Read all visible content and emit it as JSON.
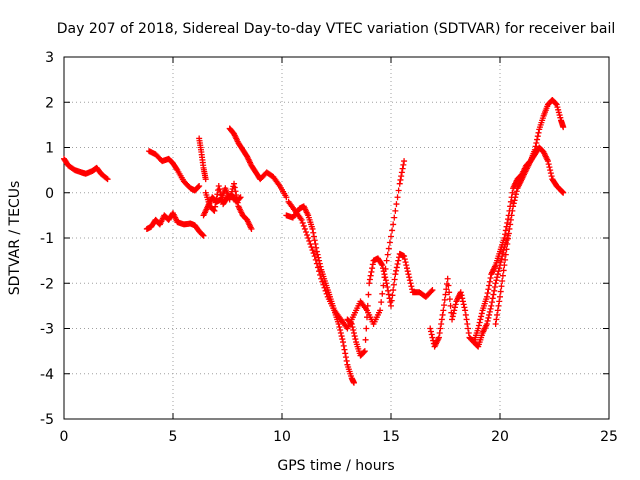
{
  "chart_data": {
    "type": "scatter",
    "title": "Day 207 of 2018, Sidereal Day-to-day VTEC variation (SDTVAR) for receiver bail",
    "xlabel": "GPS time / hours",
    "ylabel": "SDTVAR / TECUs",
    "xlim": [
      0,
      25
    ],
    "ylim": [
      -5,
      3
    ],
    "xticks": [
      "0",
      "5",
      "10",
      "15",
      "20",
      "25"
    ],
    "yticks": [
      "-5",
      "-4",
      "-3",
      "-2",
      "-1",
      "0",
      "1",
      "2",
      "3"
    ],
    "grid": true,
    "marker": "plus",
    "color": "#ff0000",
    "series": [
      {
        "x": [
          0.0,
          0.2,
          0.5,
          0.8,
          1.0,
          1.3,
          1.5,
          1.7,
          2.0
        ],
        "y": [
          0.75,
          0.6,
          0.5,
          0.45,
          0.42,
          0.48,
          0.55,
          0.42,
          0.3
        ]
      },
      {
        "x": [
          3.9,
          4.2,
          4.5,
          4.8,
          5.0,
          5.2,
          5.5,
          5.8,
          6.0,
          6.2
        ],
        "y": [
          0.92,
          0.85,
          0.7,
          0.75,
          0.65,
          0.5,
          0.25,
          0.1,
          0.05,
          0.15
        ]
      },
      {
        "x": [
          6.2,
          6.3,
          6.4,
          6.5
        ],
        "y": [
          1.2,
          0.9,
          0.55,
          0.3
        ]
      },
      {
        "x": [
          3.8,
          4.0,
          4.2,
          4.4,
          4.6,
          4.8,
          5.0,
          5.2,
          5.5,
          5.8,
          6.0,
          6.2,
          6.4
        ],
        "y": [
          -0.8,
          -0.75,
          -0.6,
          -0.7,
          -0.5,
          -0.6,
          -0.45,
          -0.65,
          -0.7,
          -0.68,
          -0.72,
          -0.85,
          -0.95
        ]
      },
      {
        "x": [
          6.4,
          6.6,
          6.8,
          7.0,
          7.2,
          7.4,
          7.6,
          7.8,
          8.0,
          8.2,
          8.4,
          8.6
        ],
        "y": [
          -0.5,
          -0.3,
          -0.1,
          -0.2,
          -0.15,
          0.1,
          -0.15,
          0.2,
          -0.3,
          -0.5,
          -0.6,
          -0.8
        ]
      },
      {
        "x": [
          6.5,
          6.7,
          6.9,
          7.1,
          7.3,
          7.5,
          7.7,
          7.9,
          8.1
        ],
        "y": [
          0.0,
          -0.3,
          -0.4,
          0.15,
          -0.25,
          -0.1,
          -0.05,
          -0.2,
          -0.1
        ]
      },
      {
        "x": [
          7.6,
          7.8,
          8.0,
          8.2,
          8.4,
          8.6,
          8.8,
          9.0,
          9.3,
          9.6,
          9.9,
          10.2
        ],
        "y": [
          1.42,
          1.3,
          1.1,
          0.95,
          0.8,
          0.6,
          0.45,
          0.3,
          0.45,
          0.35,
          0.15,
          -0.1
        ]
      },
      {
        "x": [
          10.2,
          10.5,
          10.8,
          11.0,
          11.2,
          11.4,
          11.6,
          11.8,
          12.0,
          12.2,
          12.4,
          12.6,
          12.8,
          13.0,
          13.2,
          13.3
        ],
        "y": [
          -0.5,
          -0.55,
          -0.35,
          -0.3,
          -0.5,
          -0.8,
          -1.3,
          -1.7,
          -2.0,
          -2.3,
          -2.6,
          -2.9,
          -3.3,
          -3.8,
          -4.1,
          -4.2
        ]
      },
      {
        "x": [
          10.3,
          10.6,
          10.9,
          11.2,
          11.5,
          11.8,
          12.1,
          12.4,
          12.7,
          13.0,
          13.3,
          13.6,
          13.9,
          14.2,
          14.5,
          14.8,
          15.1,
          15.4,
          15.6
        ],
        "y": [
          -0.2,
          -0.4,
          -0.6,
          -1.0,
          -1.4,
          -1.9,
          -2.3,
          -2.6,
          -2.8,
          -3.0,
          -2.7,
          -2.4,
          -2.6,
          -2.9,
          -2.6,
          -1.5,
          -0.7,
          0.2,
          0.7
        ]
      },
      {
        "x": [
          13.0,
          13.2,
          13.4,
          13.6,
          13.8,
          14.0,
          14.2,
          14.4,
          14.6,
          14.8,
          15.0,
          15.2,
          15.4,
          15.6,
          15.8,
          16.0,
          16.3,
          16.6,
          16.9
        ],
        "y": [
          -2.8,
          -2.9,
          -3.3,
          -3.6,
          -3.5,
          -2.0,
          -1.5,
          -1.45,
          -1.6,
          -2.0,
          -2.5,
          -1.8,
          -1.35,
          -1.4,
          -1.8,
          -2.2,
          -2.2,
          -2.3,
          -2.15
        ]
      },
      {
        "x": [
          16.8,
          17.0,
          17.2,
          17.4,
          17.6,
          17.8,
          18.0,
          18.2,
          18.4,
          18.6,
          18.8,
          19.0,
          19.2,
          19.4,
          19.6,
          19.8,
          20.0,
          20.2,
          20.4
        ],
        "y": [
          -3.0,
          -3.4,
          -3.2,
          -2.6,
          -1.9,
          -2.8,
          -2.4,
          -2.2,
          -2.6,
          -3.2,
          -3.3,
          -3.4,
          -3.1,
          -2.9,
          -2.5,
          -2.0,
          -1.6,
          -1.2,
          -0.9
        ]
      },
      {
        "x": [
          18.8,
          19.0,
          19.2,
          19.4,
          19.6,
          19.8,
          20.0,
          20.2,
          20.4,
          20.6,
          20.8,
          21.0,
          21.2,
          21.4,
          21.6,
          21.8,
          22.0,
          22.2,
          22.4,
          22.6,
          22.8,
          22.9
        ],
        "y": [
          -3.3,
          -3.0,
          -2.6,
          -2.3,
          -1.8,
          -1.6,
          -1.3,
          -1.0,
          -0.5,
          0.1,
          0.3,
          0.4,
          0.6,
          0.7,
          0.85,
          1.0,
          0.9,
          0.7,
          0.3,
          0.15,
          0.05,
          0.0
        ]
      },
      {
        "x": [
          19.8,
          20.0,
          20.2,
          20.4,
          20.6,
          20.8,
          21.0,
          21.2,
          21.4,
          21.6,
          21.8,
          22.0,
          22.2,
          22.4,
          22.6,
          22.8,
          22.9
        ],
        "y": [
          -2.9,
          -2.3,
          -1.6,
          -0.9,
          -0.3,
          0.1,
          0.3,
          0.5,
          0.7,
          0.95,
          1.4,
          1.7,
          1.95,
          2.05,
          1.95,
          1.6,
          1.45
        ]
      }
    ]
  }
}
